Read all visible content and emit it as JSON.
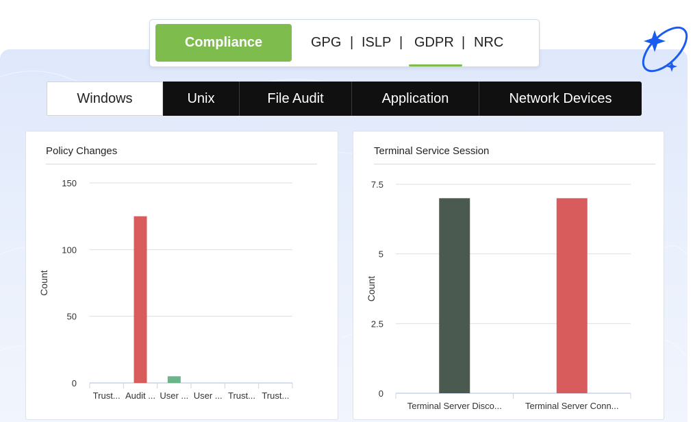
{
  "compliance_bar": {
    "button_label": "Compliance",
    "tabs": [
      "GPG",
      "ISLP",
      "GDPR",
      "NRC"
    ],
    "separator": "|",
    "active_tab": "GDPR",
    "accent_color": "#7ebc4e"
  },
  "os_tabs": {
    "items": [
      "Windows",
      "Unix",
      "File Audit",
      "Application",
      "Network Devices"
    ],
    "active": "Windows"
  },
  "cards": {
    "left_title": "Policy Changes",
    "right_title": "Terminal Service Session"
  },
  "chart_data": [
    {
      "type": "bar",
      "title": "Policy Changes",
      "ylabel": "Count",
      "xlabel": "",
      "categories": [
        "Trust...",
        "Audit ...",
        "User ...",
        "User ...",
        "Trust...",
        "Trust..."
      ],
      "values": [
        0,
        125,
        5,
        0,
        0,
        0
      ],
      "colors": [
        "#d95c5c",
        "#d95c5c",
        "#6ab58a",
        "#d95c5c",
        "#d95c5c",
        "#d95c5c"
      ],
      "ylim": [
        0,
        150
      ],
      "yticks": [
        0,
        50,
        100,
        150
      ],
      "ytick_labels": [
        "0",
        "50",
        "100",
        "150"
      ],
      "grid": true
    },
    {
      "type": "bar",
      "title": "Terminal Service Session",
      "ylabel": "Count",
      "xlabel": "",
      "categories": [
        "Terminal Server Disco...",
        "Terminal Server Conn..."
      ],
      "values": [
        7,
        7
      ],
      "colors": [
        "#4a5a51",
        "#d95c5c"
      ],
      "ylim": [
        0,
        7.5
      ],
      "yticks": [
        0,
        2.5,
        5,
        7.5
      ],
      "ytick_labels": [
        "0",
        "2.5",
        "5",
        "7.5"
      ],
      "grid": true
    }
  ]
}
